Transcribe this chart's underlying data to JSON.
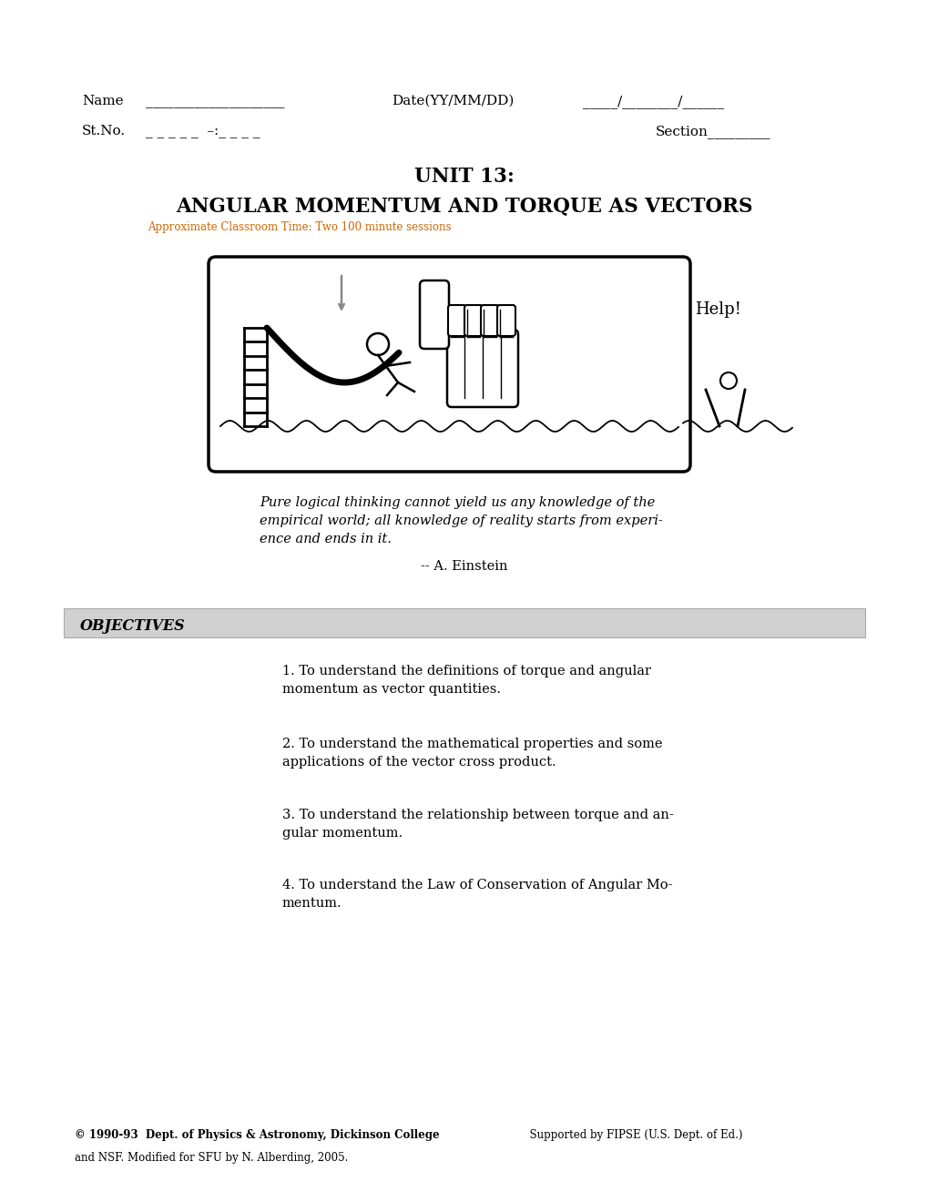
{
  "bg_color": "#ffffff",
  "subtitle_color": "#cc6600",
  "unit_title_line1": "UNIT 13:",
  "unit_title_line2": "ANGULAR MOMENTUM AND TORQUE AS VECTORS",
  "subtitle": "Approximate Classroom Time: Two 100 minute sessions",
  "quote_line1": "Pure logical thinking cannot yield us any knowledge of the",
  "quote_line2": "empirical world; all knowledge of reality starts from experi-",
  "quote_line3": "ence and ends in it.",
  "quote_attr": "-- A. Einstein",
  "objectives_header": "OBJECTIVES",
  "obj1": "1. To understand the definitions of torque and angular\nmomentum as vector quantities.",
  "obj2": "2. To understand the mathematical properties and some\napplications of the vector cross product.",
  "obj3": "3. To understand the relationship between torque and an-\ngular momentum.",
  "obj4": "4. To understand the Law of Conservation of Angular Mo-\nmentum.",
  "footer_bold": "© 1990-93  Dept. of Physics & Astronomy, Dickinson College",
  "footer_normal": "  Supported by FIPSE (U.S. Dept. of Ed.)",
  "footer_line2": "and NSF. Modified for SFU by N. Alberding, 2005."
}
